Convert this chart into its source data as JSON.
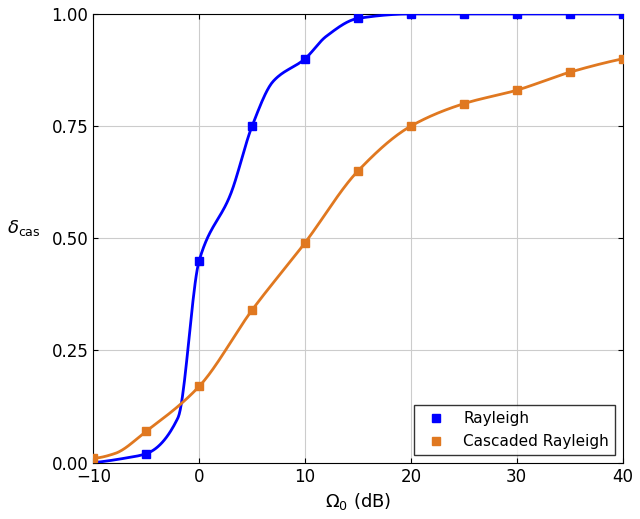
{
  "xlabel": "$\\Omega_0$ (dB)",
  "ylabel": "$\\delta_{\\mathrm{cas}}$",
  "xlim": [
    -10,
    40
  ],
  "ylim": [
    0,
    1.05
  ],
  "ylim_display": [
    0,
    1.0
  ],
  "yticks": [
    0,
    0.25,
    0.5,
    0.75,
    1.0
  ],
  "xticks": [
    -10,
    0,
    10,
    20,
    30,
    40
  ],
  "rayleigh_color": "#0000ff",
  "cascaded_color": "#e07820",
  "marker": "s",
  "markersize": 6,
  "linewidth": 2.0,
  "legend_labels": [
    "Rayleigh",
    "Cascaded Rayleigh"
  ],
  "rayleigh_marker_x": [
    -5,
    0,
    5,
    10,
    15,
    20,
    25,
    30,
    35,
    40
  ],
  "cascaded_marker_x": [
    -10,
    -5,
    0,
    5,
    10,
    15,
    20,
    25,
    30,
    35,
    40
  ]
}
